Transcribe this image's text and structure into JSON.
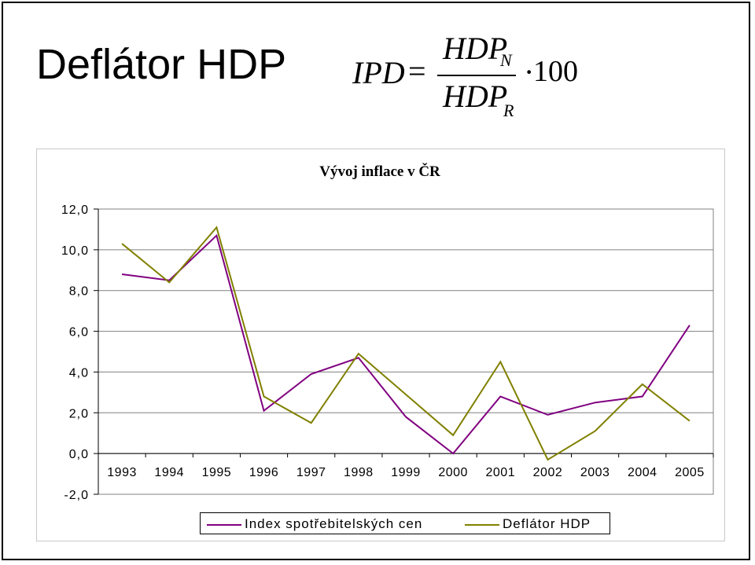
{
  "slide": {
    "title": "Deflátor HDP",
    "formula": {
      "lhs": "IPD",
      "equals": "=",
      "numerator": "HDP",
      "numerator_sub": "N",
      "denominator": "HDP",
      "denominator_sub": "R",
      "dot": "·",
      "factor": "100"
    }
  },
  "chart_data": {
    "type": "line",
    "title": "Vývoj inflace v ČR",
    "categories": [
      "1993",
      "1994",
      "1995",
      "1996",
      "1997",
      "1998",
      "1999",
      "2000",
      "2001",
      "2002",
      "2003",
      "2004",
      "2005"
    ],
    "series": [
      {
        "name": "Index spotřebitelských cen",
        "color": "#800080",
        "values": [
          8.8,
          8.5,
          10.7,
          2.1,
          3.9,
          4.7,
          1.8,
          0.0,
          2.8,
          1.9,
          2.5,
          2.8,
          6.3
        ]
      },
      {
        "name": "Deflátor HDP",
        "color": "#808000",
        "values": [
          10.3,
          8.4,
          11.1,
          2.8,
          1.5,
          4.9,
          2.9,
          0.9,
          4.5,
          -0.3,
          1.1,
          3.4,
          1.6
        ]
      }
    ],
    "yticks": [
      "12,0",
      "10,0",
      "8,0",
      "6,0",
      "4,0",
      "2,0",
      "0,0",
      "-2,0"
    ],
    "ylim": [
      -2,
      12
    ],
    "grid": true,
    "legend_position": "bottom"
  }
}
